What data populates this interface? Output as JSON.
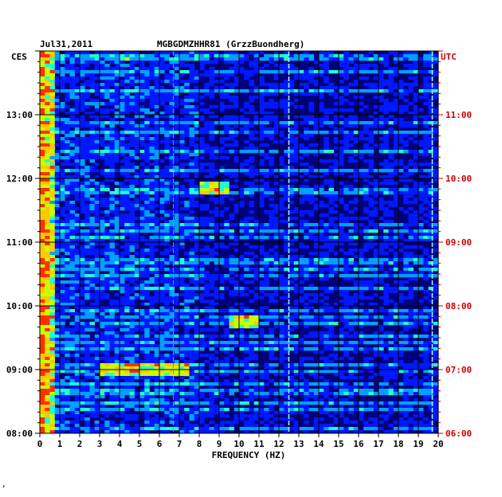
{
  "header": {
    "date": "Jul31,2011",
    "station": "MGBGDMZHHR81 (GrzzBuondherg)",
    "left_timezone": "CES",
    "right_timezone": "UTC"
  },
  "footer_mark": "*",
  "colors": {
    "background": "#00007a",
    "left_axis_text": "#000000",
    "right_axis_text": "#cc0000",
    "gridline": "#000000"
  },
  "chart_data": {
    "type": "heatmap",
    "title": "",
    "xlabel": "FREQUENCY (HZ)",
    "ylabel": "",
    "xlim": [
      0,
      20
    ],
    "x_ticks": [
      "0",
      "1",
      "2",
      "3",
      "4",
      "5",
      "6",
      "7",
      "8",
      "9",
      "10",
      "11",
      "12",
      "13",
      "14",
      "15",
      "16",
      "17",
      "18",
      "19",
      "20"
    ],
    "left_ticks": [
      "08:00",
      "09:00",
      "10:00",
      "11:00",
      "12:00",
      "13:00"
    ],
    "right_ticks": [
      "06:00",
      "07:00",
      "08:00",
      "09:00",
      "10:00",
      "11:00"
    ],
    "ylim_left": [
      "08:00",
      "14:00"
    ],
    "ylim_right": [
      "06:00",
      "12:00"
    ],
    "colormap": [
      "#00008c",
      "#0018ff",
      "#00a0ff",
      "#20ffd0",
      "#c8ff00",
      "#ffc800",
      "#ff3000"
    ],
    "features": [
      {
        "kind": "low-frequency band",
        "freq_range_hz": [
          0,
          0.8
        ],
        "intensity": "high"
      },
      {
        "kind": "persistent line",
        "freq_hz": 12.5,
        "intensity": "medium"
      },
      {
        "kind": "persistent line",
        "freq_hz": 19.7,
        "intensity": "medium"
      },
      {
        "kind": "persistent line",
        "freq_hz": 6.7,
        "intensity": "low"
      },
      {
        "kind": "burst",
        "time": "09:45",
        "freq_range_hz": [
          9.5,
          11
        ],
        "intensity": "medium"
      },
      {
        "kind": "burst",
        "time": "09:00",
        "freq_range_hz": [
          3,
          7.5
        ],
        "intensity": "medium"
      },
      {
        "kind": "burst",
        "time": "11:50",
        "freq_range_hz": [
          8,
          9.5
        ],
        "intensity": "low"
      }
    ]
  }
}
